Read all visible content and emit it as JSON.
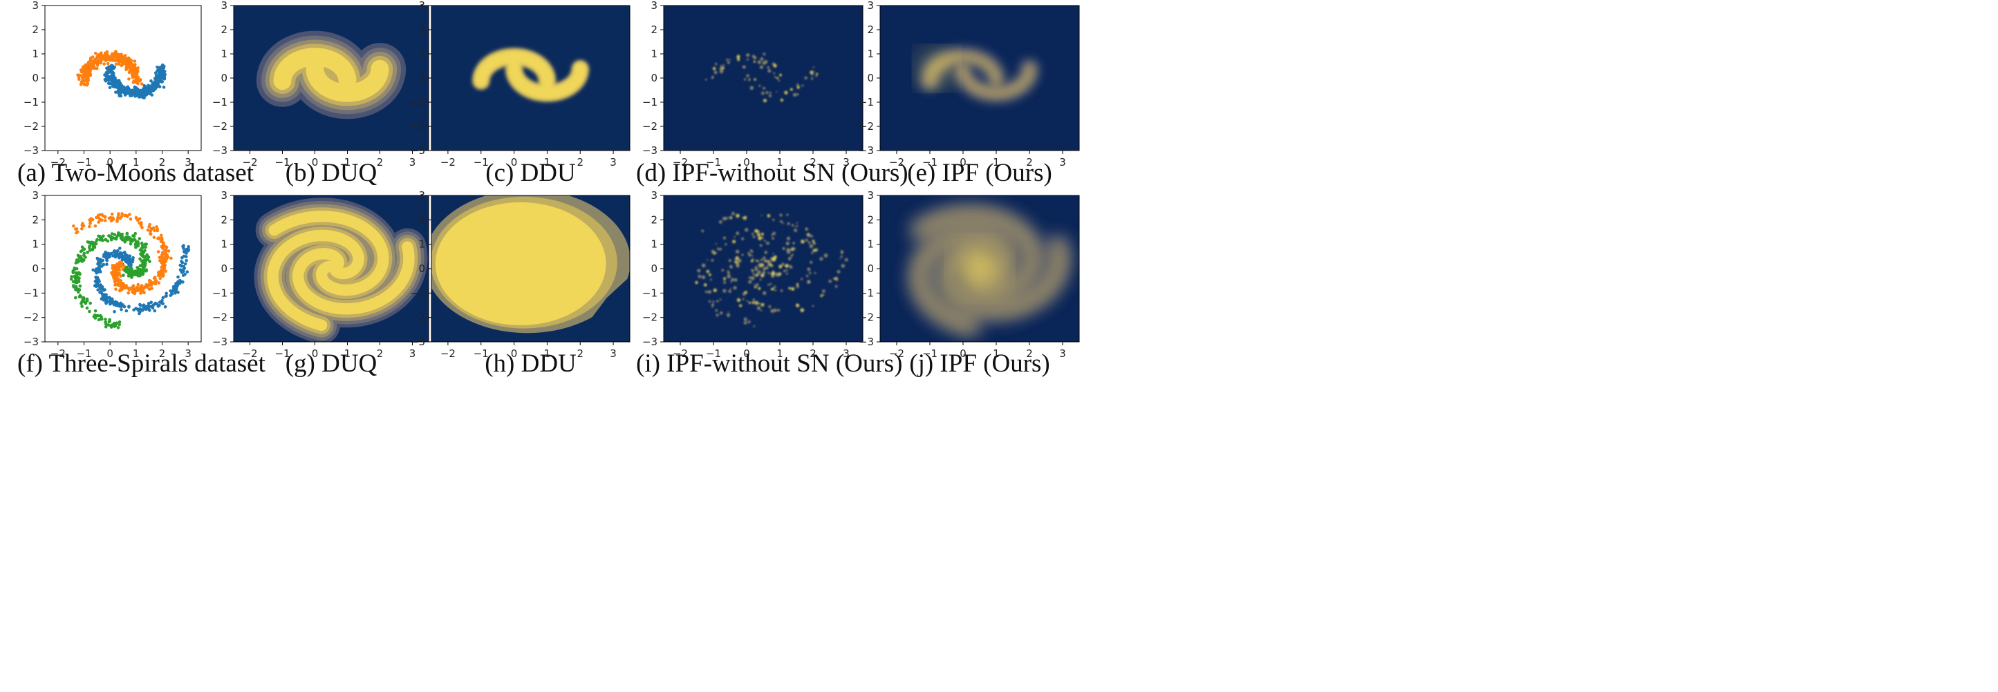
{
  "colors": {
    "navy": "#0b2a5c",
    "yellow": "#f0d75a",
    "blue": "#1f77b4",
    "orange": "#ff7f0e",
    "green": "#2ca02c",
    "axis_text": "#222222"
  },
  "panels": [
    {
      "caption": "(a) Two-Moons dataset",
      "kind": "scatter",
      "dataset": "moons"
    },
    {
      "caption": "(b) DUQ",
      "kind": "heat",
      "dataset": "moons",
      "style": "contour-wide"
    },
    {
      "caption": "(c) DDU",
      "kind": "heat",
      "dataset": "moons",
      "style": "blob-tight"
    },
    {
      "caption": "(d) IPF-without SN (Ours)",
      "kind": "heat",
      "dataset": "moons",
      "style": "speckle"
    },
    {
      "caption": "(e) IPF (Ours)",
      "kind": "heat",
      "dataset": "moons",
      "style": "smooth"
    },
    {
      "caption": "(f) Three-Spirals dataset",
      "kind": "scatter",
      "dataset": "spirals"
    },
    {
      "caption": "(g) DUQ",
      "kind": "heat",
      "dataset": "spirals",
      "style": "contour-wide"
    },
    {
      "caption": "(h) DDU",
      "kind": "heat",
      "dataset": "spirals",
      "style": "blob-all"
    },
    {
      "caption": "(i) IPF-without SN (Ours)",
      "kind": "heat",
      "dataset": "spirals",
      "style": "speckle"
    },
    {
      "caption": "(j) IPF (Ours)",
      "kind": "heat",
      "dataset": "spirals",
      "style": "smooth"
    }
  ],
  "chart_data": [
    {
      "type": "scatter",
      "title": "(a) Two-Moons dataset",
      "xlim": [
        -2.5,
        3.5
      ],
      "ylim": [
        -3,
        3
      ],
      "xticks": [
        "-2",
        "-1",
        "0",
        "1",
        "2",
        "3"
      ],
      "yticks": [
        "-3",
        "-2",
        "-1",
        "0",
        "1",
        "2",
        "3"
      ],
      "grid": false,
      "series": [
        {
          "color": "#ff7f0e",
          "shape": "upper moon",
          "x_range": [
            -1.2,
            1.2
          ],
          "y_range": [
            -0.2,
            1.2
          ]
        },
        {
          "color": "#1f77b4",
          "shape": "lower moon",
          "x_range": [
            -0.2,
            2.2
          ],
          "y_range": [
            -0.7,
            0.7
          ]
        }
      ]
    },
    {
      "type": "scatter",
      "title": "(f) Three-Spirals dataset",
      "xlim": [
        -2.5,
        3.5
      ],
      "ylim": [
        -3,
        3
      ],
      "xticks": [
        "-2",
        "-1",
        "0",
        "1",
        "2",
        "3"
      ],
      "yticks": [
        "-3",
        "-2",
        "-1",
        "0",
        "1",
        "2",
        "3"
      ],
      "grid": false,
      "series": [
        {
          "color": "#1f77b4",
          "shape": "spiral arm"
        },
        {
          "color": "#ff7f0e",
          "shape": "spiral arm"
        },
        {
          "color": "#2ca02c",
          "shape": "spiral arm"
        }
      ]
    },
    {
      "type": "heatmap",
      "title": "(b) DUQ",
      "xlim": [
        -2.5,
        3.5
      ],
      "ylim": [
        -3,
        3
      ],
      "colormap": "cividis"
    },
    {
      "type": "heatmap",
      "title": "(c) DDU",
      "xlim": [
        -2.5,
        3.5
      ],
      "ylim": [
        -3,
        3
      ],
      "colormap": "cividis"
    },
    {
      "type": "heatmap",
      "title": "(d) IPF-without SN (Ours)",
      "xlim": [
        -2.5,
        3.5
      ],
      "ylim": [
        -3,
        3
      ],
      "colormap": "cividis"
    },
    {
      "type": "heatmap",
      "title": "(e) IPF (Ours)",
      "xlim": [
        -2.5,
        3.5
      ],
      "ylim": [
        -3,
        3
      ],
      "colormap": "cividis"
    },
    {
      "type": "heatmap",
      "title": "(g) DUQ",
      "xlim": [
        -2.5,
        3.5
      ],
      "ylim": [
        -3,
        3
      ],
      "colormap": "cividis"
    },
    {
      "type": "heatmap",
      "title": "(h) DDU",
      "xlim": [
        -2.5,
        3.5
      ],
      "ylim": [
        -3,
        3
      ],
      "colormap": "cividis"
    },
    {
      "type": "heatmap",
      "title": "(i) IPF-without SN (Ours)",
      "xlim": [
        -2.5,
        3.5
      ],
      "ylim": [
        -3,
        3
      ],
      "colormap": "cividis"
    },
    {
      "type": "heatmap",
      "title": "(j) IPF (Ours)",
      "xlim": [
        -2.5,
        3.5
      ],
      "ylim": [
        -3,
        3
      ],
      "colormap": "cividis"
    }
  ]
}
